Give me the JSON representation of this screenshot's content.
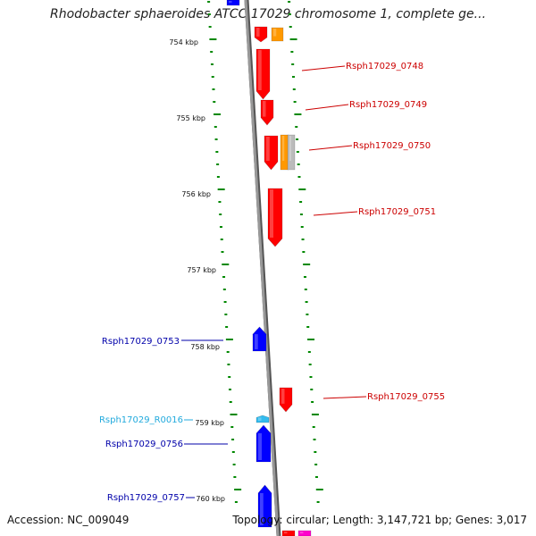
{
  "title": "Rhodobacter sphaeroides ATCC 17029 chromosome 1, complete ge...",
  "footer": {
    "accession": "Accession: NC_009049",
    "summary": "Topology: circular; Length: 3,147,721 bp; Genes: 3,017"
  },
  "colors": {
    "forward_gene": "#ff0000",
    "reverse_gene": "#0000ff",
    "rna_gene": "#33bbee",
    "other_gene": "#ff9900",
    "pseudo_gene": "#bbbbbb",
    "tick": "#008800",
    "backbone": "#888888",
    "label_red": "#cc0000",
    "label_blue": "#0000aa",
    "label_cyan": "#22aadd"
  },
  "scale_labels": [
    "754 kbp",
    "755 kbp",
    "756 kbp",
    "757 kbp",
    "758 kbp",
    "759 kbp",
    "760 kbp"
  ],
  "gene_labels": [
    {
      "name": "Rsph17029_0748",
      "color": "label_red"
    },
    {
      "name": "Rsph17029_0749",
      "color": "label_red"
    },
    {
      "name": "Rsph17029_0750",
      "color": "label_red"
    },
    {
      "name": "Rsph17029_0751",
      "color": "label_red"
    },
    {
      "name": "Rsph17029_0753",
      "color": "label_blue"
    },
    {
      "name": "Rsph17029_0755",
      "color": "label_red"
    },
    {
      "name": "Rsph17029_R0016",
      "color": "label_cyan"
    },
    {
      "name": "Rsph17029_0756",
      "color": "label_blue"
    },
    {
      "name": "Rsph17029_0757",
      "color": "label_blue"
    }
  ]
}
